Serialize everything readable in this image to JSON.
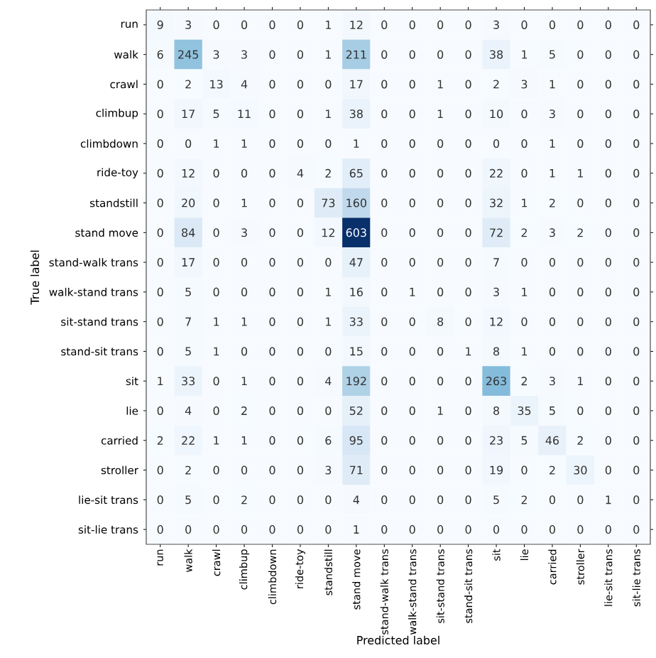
{
  "chart_data": {
    "type": "heatmap",
    "xlabel": "Predicted label",
    "ylabel": "True label",
    "categories": [
      "run",
      "walk",
      "crawl",
      "climbup",
      "climbdown",
      "ride-toy",
      "standstill",
      "stand move",
      "stand-walk trans",
      "walk-stand trans",
      "sit-stand trans",
      "stand-sit trans",
      "sit",
      "lie",
      "carried",
      "stroller",
      "lie-sit trans",
      "sit-lie trans"
    ],
    "y_categories": [
      "run",
      "walk",
      "crawl",
      "climbup",
      "climbdown",
      "ride-toy",
      "standstill",
      "stand move",
      "stand-walk trans",
      "walk-stand trans",
      "sit-stand trans",
      "stand-sit trans",
      "sit",
      "lie",
      "carried",
      "stroller",
      "lie-sit trans",
      "sit-lie trans"
    ],
    "cells": [
      [
        9,
        3,
        0,
        0,
        0,
        0,
        1,
        12,
        0,
        0,
        0,
        0,
        3,
        0,
        0,
        0,
        0,
        0
      ],
      [
        6,
        245,
        3,
        3,
        0,
        0,
        1,
        211,
        0,
        0,
        0,
        0,
        38,
        1,
        5,
        0,
        0,
        0
      ],
      [
        0,
        2,
        13,
        4,
        0,
        0,
        0,
        17,
        0,
        0,
        1,
        0,
        2,
        3,
        1,
        0,
        0,
        0
      ],
      [
        0,
        17,
        5,
        11,
        0,
        0,
        1,
        38,
        0,
        0,
        1,
        0,
        10,
        0,
        3,
        0,
        0,
        0
      ],
      [
        0,
        0,
        1,
        1,
        0,
        0,
        0,
        1,
        0,
        0,
        0,
        0,
        0,
        0,
        1,
        0,
        0,
        0
      ],
      [
        0,
        12,
        0,
        0,
        0,
        4,
        2,
        65,
        0,
        0,
        0,
        0,
        22,
        0,
        1,
        1,
        0,
        0
      ],
      [
        0,
        20,
        0,
        1,
        0,
        0,
        73,
        160,
        0,
        0,
        0,
        0,
        32,
        1,
        2,
        0,
        0,
        0
      ],
      [
        0,
        84,
        0,
        3,
        0,
        0,
        12,
        603,
        0,
        0,
        0,
        0,
        72,
        2,
        3,
        2,
        0,
        0
      ],
      [
        0,
        17,
        0,
        0,
        0,
        0,
        0,
        47,
        0,
        0,
        0,
        0,
        7,
        0,
        0,
        0,
        0,
        0
      ],
      [
        0,
        5,
        0,
        0,
        0,
        0,
        1,
        16,
        0,
        1,
        0,
        0,
        3,
        1,
        0,
        0,
        0,
        0
      ],
      [
        0,
        7,
        1,
        1,
        0,
        0,
        1,
        33,
        0,
        0,
        8,
        0,
        12,
        0,
        0,
        0,
        0,
        0
      ],
      [
        0,
        5,
        1,
        0,
        0,
        0,
        0,
        15,
        0,
        0,
        0,
        1,
        8,
        1,
        0,
        0,
        0,
        0
      ],
      [
        1,
        33,
        0,
        1,
        0,
        0,
        4,
        192,
        0,
        0,
        0,
        0,
        263,
        2,
        3,
        1,
        0,
        0
      ],
      [
        0,
        4,
        0,
        2,
        0,
        0,
        0,
        52,
        0,
        0,
        1,
        0,
        8,
        35,
        5,
        0,
        0,
        0
      ],
      [
        2,
        22,
        1,
        1,
        0,
        0,
        6,
        95,
        0,
        0,
        0,
        0,
        23,
        5,
        46,
        2,
        0,
        0
      ],
      [
        0,
        2,
        0,
        0,
        0,
        0,
        3,
        71,
        0,
        0,
        0,
        0,
        19,
        0,
        2,
        30,
        0,
        0
      ],
      [
        0,
        5,
        0,
        2,
        0,
        0,
        0,
        4,
        0,
        0,
        0,
        0,
        5,
        2,
        0,
        0,
        1,
        0
      ],
      [
        0,
        0,
        0,
        0,
        0,
        0,
        0,
        1,
        0,
        0,
        0,
        0,
        0,
        0,
        0,
        0,
        0,
        0
      ]
    ],
    "data_labels": true
  }
}
